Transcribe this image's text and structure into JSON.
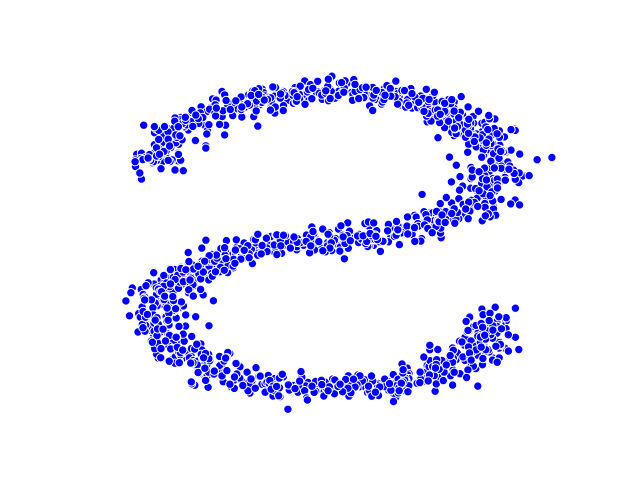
{
  "chart_data": {
    "type": "scatter",
    "title": "",
    "xlabel": "",
    "ylabel": "",
    "axes_visible": false,
    "grid": false,
    "xlim": [
      -1.2,
      1.2
    ],
    "ylim": [
      -2.2,
      2.2
    ],
    "marker_color": "#0000ff",
    "marker_edge_color": "#ffffff",
    "point_count": 1500,
    "shape": "S-curve"
  }
}
